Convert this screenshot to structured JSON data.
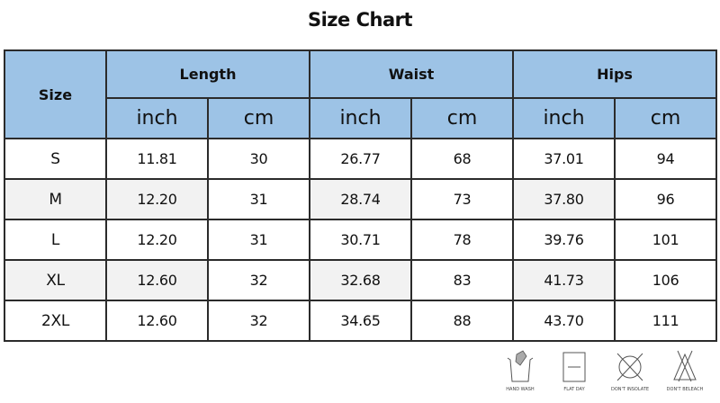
{
  "title": "Size Chart",
  "header": {
    "size": "Size",
    "groups": [
      "Length",
      "Waist",
      "Hips"
    ],
    "units": [
      "inch",
      "cm",
      "inch",
      "cm",
      "inch",
      "cm"
    ]
  },
  "rows": [
    {
      "size": "S",
      "values": [
        "11.81",
        "30",
        "26.77",
        "68",
        "37.01",
        "94"
      ]
    },
    {
      "size": "M",
      "values": [
        "12.20",
        "31",
        "28.74",
        "73",
        "37.80",
        "96"
      ]
    },
    {
      "size": "L",
      "values": [
        "12.20",
        "31",
        "30.71",
        "78",
        "39.76",
        "101"
      ]
    },
    {
      "size": "XL",
      "values": [
        "12.60",
        "32",
        "32.68",
        "83",
        "41.73",
        "106"
      ]
    },
    {
      "size": "2XL",
      "values": [
        "12.60",
        "32",
        "34.65",
        "88",
        "43.70",
        "111"
      ]
    }
  ],
  "care": [
    {
      "icon": "hand-wash-icon",
      "label": "HAND WASH"
    },
    {
      "icon": "flat-dry-icon",
      "label": "FLAT DAY"
    },
    {
      "icon": "dont-insolate-icon",
      "label": "DON'T INSOLATE"
    },
    {
      "icon": "dont-bleach-icon",
      "label": "DON'T BELEACH"
    }
  ],
  "colors": {
    "header_bg": "#9dc3e6",
    "alt_row_bg": "#f2f2f2",
    "border": "#2b2b2b"
  }
}
